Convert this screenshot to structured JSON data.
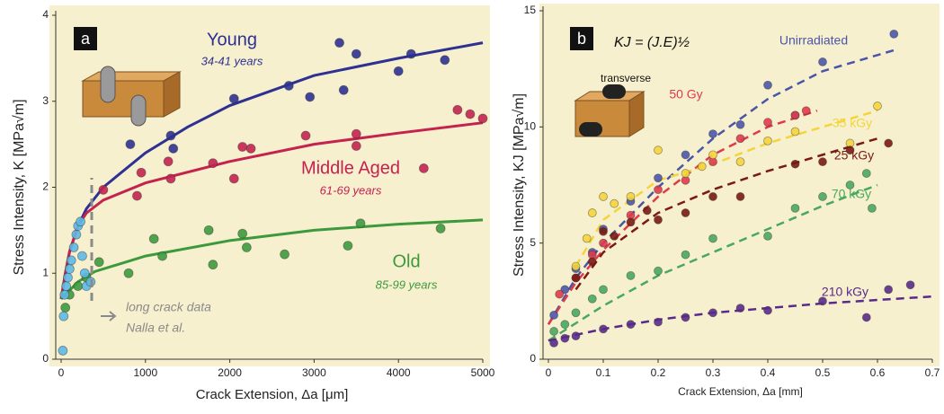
{
  "chart_data": [
    {
      "type": "scatter",
      "panel_label": "a",
      "xlabel": "Crack Extension, Δa [μm]",
      "ylabel": "Stress Intensity, K [MPa√m]",
      "xlim": [
        0,
        5000
      ],
      "ylim": [
        0,
        4
      ],
      "xticks": [
        0,
        1000,
        2000,
        3000,
        4000,
        5000
      ],
      "yticks": [
        0,
        1,
        2,
        3,
        4
      ],
      "fit_dash": false,
      "annotations": [
        "long crack data",
        "Nalla et al."
      ],
      "series": [
        {
          "name": "Young",
          "note": "34-41 years",
          "color": "#2e3192",
          "x": [
            820,
            1300,
            1330,
            2050,
            2700,
            2950,
            3300,
            3350,
            3500,
            4000,
            4150,
            4550
          ],
          "values": [
            2.5,
            2.6,
            2.45,
            3.03,
            3.18,
            3.05,
            3.68,
            3.13,
            3.55,
            3.35,
            3.55,
            3.48
          ],
          "fit_x": [
            0,
            50,
            100,
            200,
            300,
            500,
            1000,
            1500,
            2000,
            3000,
            4000,
            5000
          ],
          "fit_values": [
            0.7,
            1.0,
            1.25,
            1.55,
            1.75,
            2.0,
            2.4,
            2.7,
            2.95,
            3.3,
            3.5,
            3.68
          ]
        },
        {
          "name": "Middle Aged",
          "note": "61-69 years",
          "color": "#c4224f",
          "x": [
            500,
            900,
            950,
            1270,
            1300,
            1800,
            2050,
            2150,
            2250,
            2900,
            3500,
            3500,
            4300,
            4700,
            4850,
            5000
          ],
          "values": [
            1.97,
            1.9,
            2.17,
            2.3,
            2.1,
            2.28,
            2.1,
            2.47,
            2.45,
            2.6,
            2.48,
            2.62,
            2.22,
            2.9,
            2.85,
            2.8
          ],
          "fit_x": [
            0,
            50,
            100,
            200,
            300,
            500,
            1000,
            2000,
            3000,
            4000,
            5000
          ],
          "fit_values": [
            0.7,
            1.0,
            1.25,
            1.55,
            1.7,
            1.85,
            2.05,
            2.3,
            2.5,
            2.63,
            2.75
          ]
        },
        {
          "name": "Old",
          "note": "85-99 years",
          "color": "#3c9a3c",
          "x": [
            50,
            100,
            200,
            300,
            450,
            800,
            1100,
            1200,
            1750,
            1800,
            2150,
            2200,
            2650,
            3400,
            3550,
            4500
          ],
          "values": [
            0.6,
            0.75,
            0.85,
            0.95,
            1.13,
            1.0,
            1.4,
            1.2,
            1.5,
            1.1,
            1.46,
            1.3,
            1.22,
            1.32,
            1.58,
            1.52
          ],
          "fit_x": [
            0,
            200,
            400,
            1000,
            2000,
            3000,
            4000,
            5000
          ],
          "fit_values": [
            0.7,
            0.9,
            1.02,
            1.2,
            1.38,
            1.5,
            1.57,
            1.62
          ]
        },
        {
          "color": "#5bb8e6",
          "x": [
            20,
            30,
            40,
            60,
            80,
            100,
            120,
            150,
            180,
            200,
            230,
            250,
            280,
            300,
            350
          ],
          "values": [
            0.1,
            0.5,
            0.75,
            0.85,
            0.95,
            1.05,
            1.15,
            1.3,
            1.45,
            1.55,
            1.6,
            1.2,
            1.0,
            0.85,
            0.9
          ]
        }
      ]
    },
    {
      "type": "scatter",
      "panel_label": "b",
      "xlabel": "Crack Extension, Δa [mm]",
      "ylabel": "Stress Intensity, KJ [MPa√m]",
      "xlim": [
        0,
        0.7
      ],
      "ylim": [
        0,
        15
      ],
      "xticks": [
        0,
        0.1,
        0.2,
        0.3,
        0.4,
        0.5,
        0.6,
        0.7
      ],
      "yticks": [
        0,
        5,
        10,
        15
      ],
      "fit_dash": true,
      "annotations": [
        "KJ = (J.E)½",
        "transverse"
      ],
      "series": [
        {
          "name": "Unirradiated",
          "color": "#4a55a8",
          "x": [
            0.01,
            0.03,
            0.05,
            0.08,
            0.1,
            0.15,
            0.2,
            0.25,
            0.3,
            0.35,
            0.4,
            0.45,
            0.5,
            0.63
          ],
          "values": [
            1.9,
            3,
            3.9,
            4.6,
            5.6,
            6.8,
            7.8,
            8.8,
            9.7,
            10.1,
            11.8,
            10.5,
            12.8,
            14
          ],
          "fit_x": [
            0,
            0.05,
            0.1,
            0.2,
            0.3,
            0.4,
            0.5,
            0.63
          ],
          "fit_values": [
            1.5,
            3.5,
            5,
            7.4,
            9.5,
            11.2,
            12.4,
            13.3
          ]
        },
        {
          "name": "50 Gy",
          "color": "#e03a4a",
          "x": [
            0.02,
            0.05,
            0.08,
            0.1,
            0.15,
            0.2,
            0.25,
            0.3,
            0.35,
            0.4,
            0.45,
            0.47
          ],
          "values": [
            2.8,
            3.5,
            4.5,
            5,
            6.2,
            7.3,
            7.7,
            8.5,
            9.5,
            10.2,
            10.5,
            10.7
          ],
          "fit_x": [
            0,
            0.05,
            0.1,
            0.2,
            0.3,
            0.4,
            0.49
          ],
          "fit_values": [
            1.5,
            3.3,
            4.7,
            7,
            8.8,
            10,
            10.7
          ]
        },
        {
          "name": "35 kGy",
          "color": "#f4d43a",
          "x": [
            0.05,
            0.07,
            0.08,
            0.1,
            0.12,
            0.15,
            0.2,
            0.25,
            0.28,
            0.3,
            0.35,
            0.4,
            0.45,
            0.55,
            0.6
          ],
          "values": [
            4,
            5.2,
            6.3,
            7,
            6.7,
            7,
            9,
            8,
            8.3,
            8.8,
            8.5,
            9.4,
            9.8,
            9.3,
            10.9
          ],
          "fit_x": [
            0.05,
            0.1,
            0.2,
            0.3,
            0.4,
            0.5,
            0.6
          ],
          "fit_values": [
            4,
            6,
            7.7,
            8.4,
            9.3,
            10,
            10.7
          ]
        },
        {
          "name": "25 kGy",
          "color": "#7a1a12",
          "x": [
            0.05,
            0.08,
            0.1,
            0.12,
            0.15,
            0.18,
            0.2,
            0.25,
            0.3,
            0.35,
            0.45,
            0.5,
            0.55,
            0.62
          ],
          "values": [
            3.5,
            4.2,
            5.5,
            5.3,
            5.9,
            6.4,
            6,
            6.3,
            7,
            7,
            8.4,
            8.5,
            9,
            9.3
          ],
          "fit_x": [
            0.05,
            0.1,
            0.2,
            0.3,
            0.4,
            0.5,
            0.6
          ],
          "fit_values": [
            3,
            4.6,
            6.3,
            7.3,
            8.1,
            8.8,
            9.5
          ]
        },
        {
          "name": "70 kGy",
          "color": "#48a85e",
          "x": [
            0.01,
            0.03,
            0.05,
            0.08,
            0.1,
            0.15,
            0.2,
            0.25,
            0.3,
            0.4,
            0.45,
            0.5,
            0.55,
            0.58,
            0.59
          ],
          "values": [
            1.2,
            1.5,
            2,
            2.6,
            3,
            3.6,
            3.8,
            4.5,
            5.2,
            5.3,
            6.5,
            7,
            7.5,
            8,
            6.5
          ],
          "fit_x": [
            0,
            0.1,
            0.2,
            0.3,
            0.4,
            0.5,
            0.6
          ],
          "fit_values": [
            0.8,
            2.3,
            3.6,
            4.6,
            5.6,
            6.6,
            7.5
          ]
        },
        {
          "name": "210 kGy",
          "color": "#5a2a8a",
          "x": [
            0.01,
            0.03,
            0.05,
            0.1,
            0.15,
            0.2,
            0.25,
            0.3,
            0.35,
            0.4,
            0.5,
            0.58,
            0.62,
            0.66
          ],
          "values": [
            0.7,
            0.9,
            1,
            1.3,
            1.5,
            1.6,
            1.8,
            2,
            2.2,
            2.1,
            2.5,
            1.8,
            3,
            3.2
          ],
          "fit_x": [
            0,
            0.1,
            0.2,
            0.3,
            0.4,
            0.5,
            0.7
          ],
          "fit_values": [
            0.8,
            1.3,
            1.7,
            2,
            2.2,
            2.4,
            2.7
          ]
        }
      ]
    }
  ]
}
